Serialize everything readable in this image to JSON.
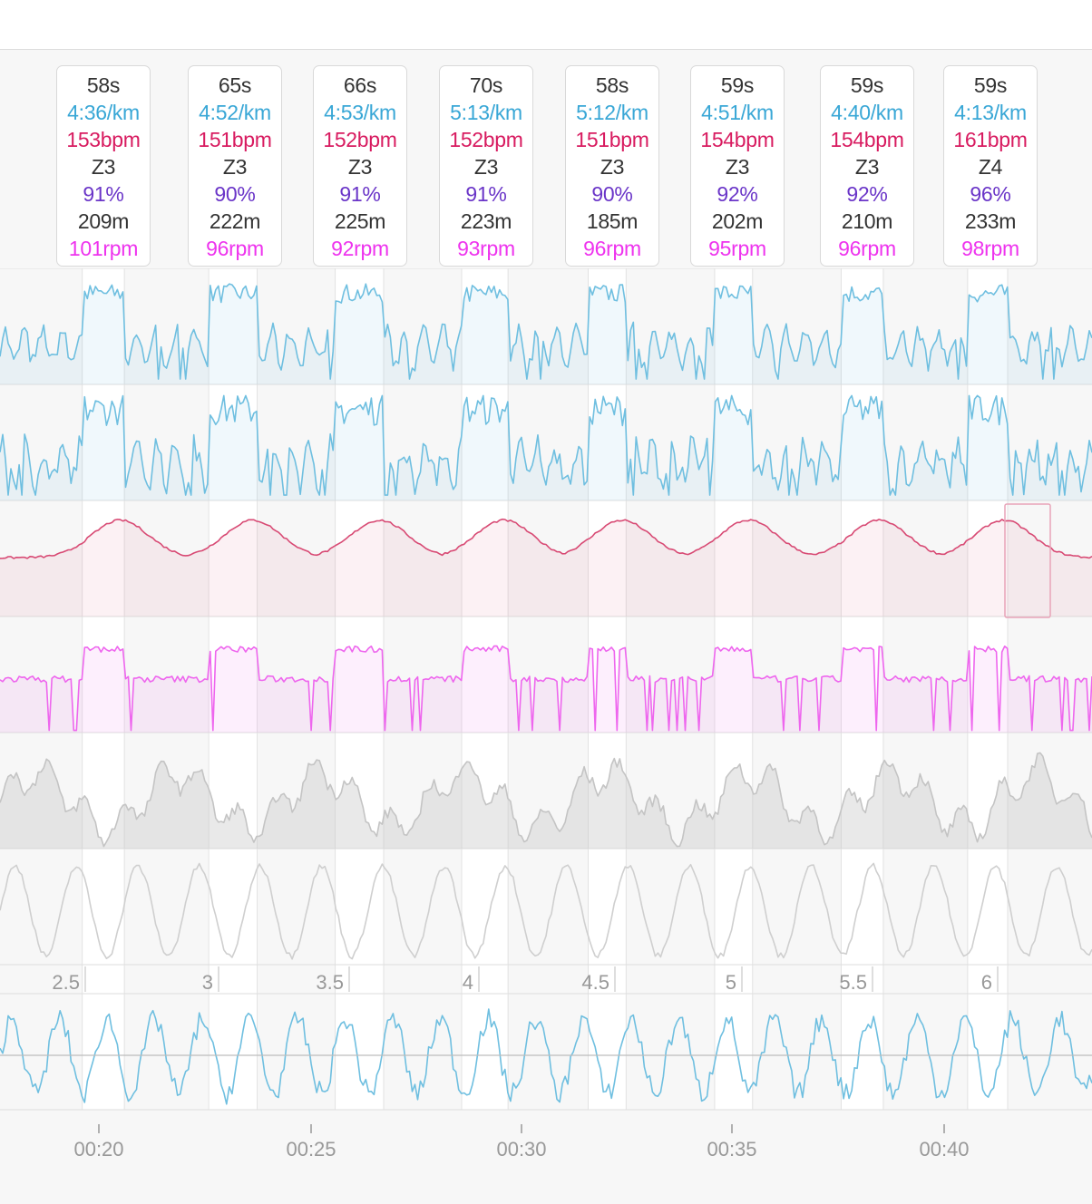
{
  "colors": {
    "pace": "#39a7d6",
    "heartrate": "#d81b60",
    "zone": "#333333",
    "percent": "#6a35c8",
    "distance": "#333333",
    "cadence": "#ee33ee",
    "pace_line": "#6fbfe0",
    "hr_line": "#d84a74",
    "cadence_line": "#ee66ee",
    "elevation_line": "#c4c4c4",
    "gray_line": "#cfcfcf",
    "vo_line": "#6fbfe0"
  },
  "intervals": [
    {
      "duration": "58s",
      "pace": "4:36/km",
      "hr": "153bpm",
      "zone": "Z3",
      "pct": "91%",
      "dist": "209m",
      "cadence": "101rpm"
    },
    {
      "duration": "65s",
      "pace": "4:52/km",
      "hr": "151bpm",
      "zone": "Z3",
      "pct": "90%",
      "dist": "222m",
      "cadence": "96rpm"
    },
    {
      "duration": "66s",
      "pace": "4:53/km",
      "hr": "152bpm",
      "zone": "Z3",
      "pct": "91%",
      "dist": "225m",
      "cadence": "92rpm"
    },
    {
      "duration": "70s",
      "pace": "5:13/km",
      "hr": "152bpm",
      "zone": "Z3",
      "pct": "91%",
      "dist": "223m",
      "cadence": "93rpm"
    },
    {
      "duration": "58s",
      "pace": "5:12/km",
      "hr": "151bpm",
      "zone": "Z3",
      "pct": "90%",
      "dist": "185m",
      "cadence": "96rpm"
    },
    {
      "duration": "59s",
      "pace": "4:51/km",
      "hr": "154bpm",
      "zone": "Z3",
      "pct": "92%",
      "dist": "202m",
      "cadence": "95rpm"
    },
    {
      "duration": "59s",
      "pace": "4:40/km",
      "hr": "154bpm",
      "zone": "Z3",
      "pct": "92%",
      "dist": "210m",
      "cadence": "96rpm"
    },
    {
      "duration": "59s",
      "pace": "4:13/km",
      "hr": "161bpm",
      "zone": "Z4",
      "pct": "96%",
      "dist": "233m",
      "cadence": "98rpm"
    }
  ],
  "chart_data": {
    "type": "line",
    "x_unit": "time",
    "time_ticks": [
      "00:20",
      "00:25",
      "00:30",
      "00:35",
      "00:40"
    ],
    "distance_ticks": [
      "2.5",
      "3",
      "3.5",
      "4",
      "4.5",
      "5",
      "5.5",
      "6"
    ],
    "interval_ranges_minutes": [
      [
        19.6,
        20.6
      ],
      [
        22.6,
        23.75
      ],
      [
        25.6,
        26.75
      ],
      [
        28.6,
        29.7
      ],
      [
        31.6,
        32.5
      ],
      [
        34.6,
        35.5
      ],
      [
        37.6,
        38.6
      ],
      [
        40.6,
        41.55
      ]
    ],
    "x_range_minutes": [
      17.65,
      43.55
    ],
    "series": [
      {
        "key": "pace",
        "style": "filled"
      },
      {
        "key": "gap",
        "style": "filled"
      },
      {
        "key": "heartrate",
        "style": "filled"
      },
      {
        "key": "cadence",
        "style": "filled"
      },
      {
        "key": "elevation",
        "style": "filled"
      },
      {
        "key": "grade",
        "style": "line"
      },
      {
        "key": "vertical_oscillation",
        "style": "line",
        "baseline": true
      }
    ],
    "grid": true
  }
}
